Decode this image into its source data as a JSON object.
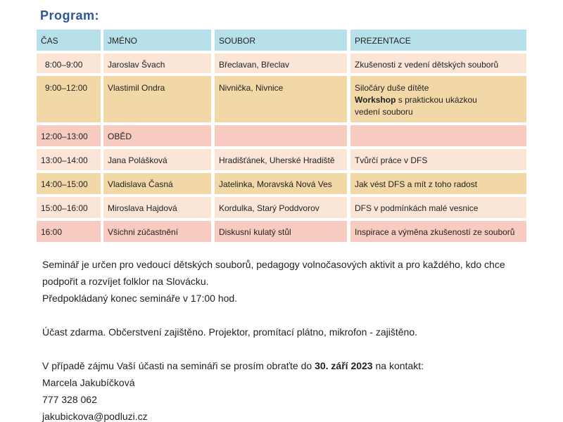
{
  "title": "Program:",
  "table": {
    "header": [
      "ČAS",
      "JMÉNO",
      "SOUBOR",
      "PREZENTACE"
    ],
    "rows": [
      [
        "8:00–9:00",
        "Jaroslav Švach",
        "Břeclavan, Břeclav",
        "Zkušenosti z vedení dětských souborů"
      ],
      [
        "9:00–12:00",
        "Vlastimil Ondra",
        "Nivnička, Nivnice",
        {
          "line1": "Siločáry duše dítěte",
          "bold": "Workshop",
          "rest": "s praktickou ukázkou",
          "line3": "vedení souboru"
        }
      ],
      [
        "12:00–13:00",
        "OBĚD"
      ],
      [
        "13:00–14:00",
        "Jana Polášková",
        "Hradišťánek, Uherské Hradiště",
        "Tvůrčí práce v DFS"
      ],
      [
        "14:00–15:00",
        "Vladislava Časná",
        "Jatelinka, Moravská Nová Ves",
        "Jak vést DFS a mít z toho radost"
      ],
      [
        "15:00–16:00",
        "Miroslava Hajdová",
        "Kordulka, Starý Poddvorov",
        "DFS v podmínkách malé vesnice"
      ],
      [
        "16:00",
        "Všichni zúčastnění",
        "Diskusní kulatý stůl",
        "Inspirace a výměna zkušeností ze souborů"
      ]
    ]
  },
  "text": {
    "p1": [
      "Seminář je určen pro vedoucí dětských souborů, pedagogy volnočasových aktivit a pro každého, kdo chce",
      "podpořit a rozvíjet folklor na Slovácku.",
      "Předpokládaný konec semináře v 17:00 hod."
    ],
    "p2": "Účast zdarma. Občerstvení zajištěno. Projektor, promítací plátno, mikrofon - zajištěno.",
    "p3": {
      "before": "V případě zájmu Vaší účasti na semináři se prosím obraťte do",
      "date": "30. září 2023",
      "after": "na kontakt:"
    },
    "contact": [
      "Marcela Jakubíčková",
      "777 328 062",
      "jakubickova@podluzi.cz"
    ]
  }
}
